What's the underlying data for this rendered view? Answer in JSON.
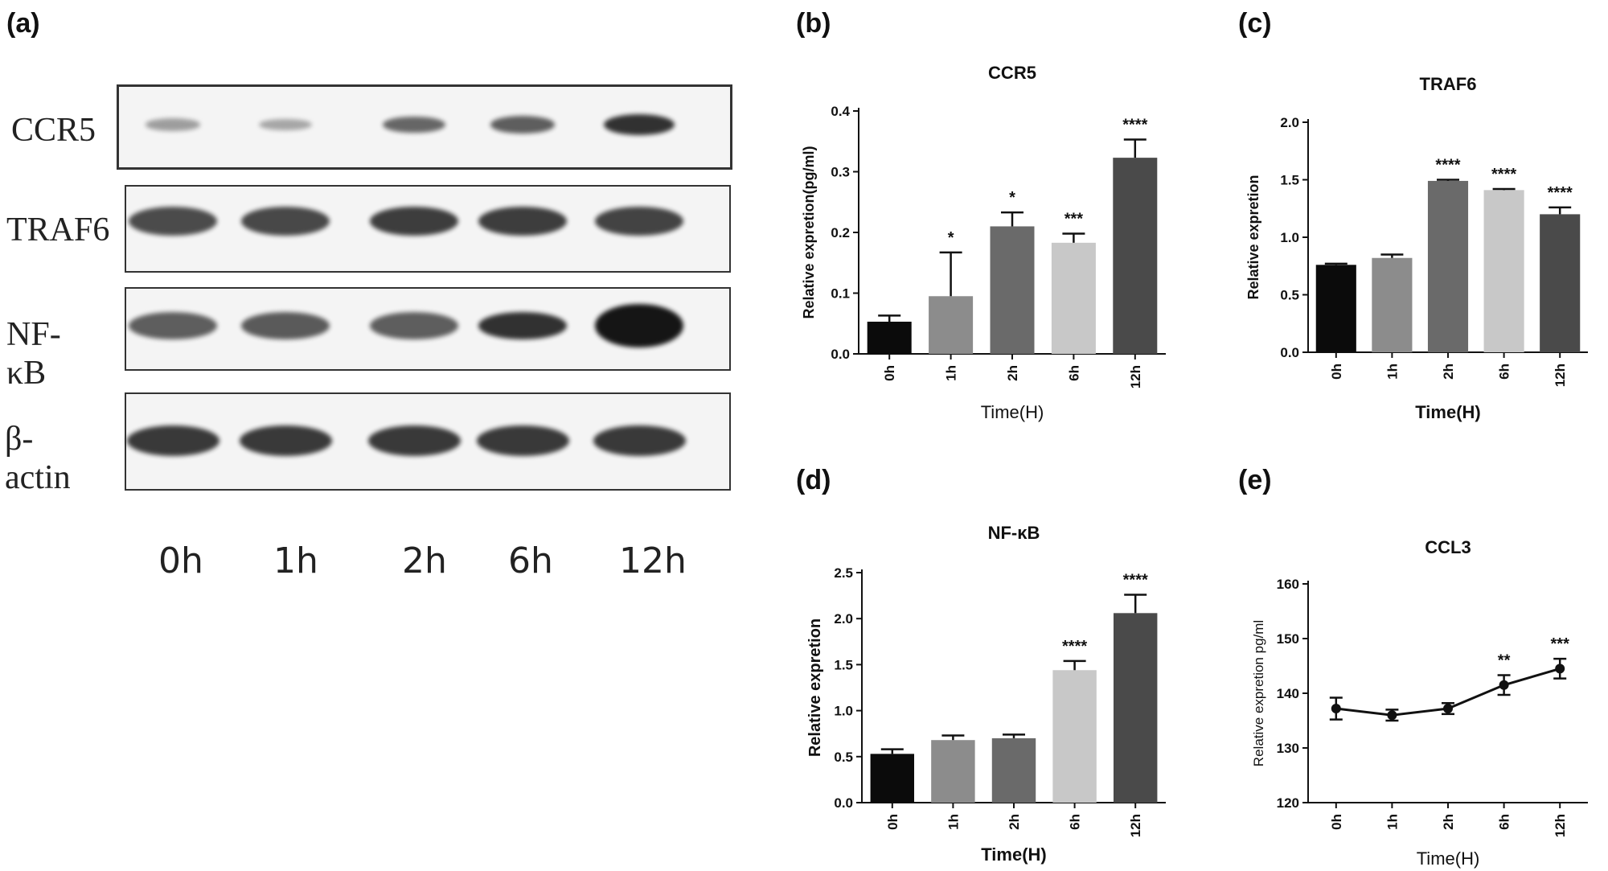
{
  "panel_letters": {
    "a": "(a)",
    "b": "(b)",
    "c": "(c)",
    "d": "(d)",
    "e": "(e)"
  },
  "blot": {
    "rows": [
      "CCR5",
      "TRAF6",
      "NF-κB",
      "β-actin"
    ],
    "lanes": [
      "0h",
      "1h",
      "2h",
      "6h",
      "12h"
    ],
    "band_intensity": {
      "CCR5": [
        0.25,
        0.2,
        0.55,
        0.6,
        0.85
      ],
      "TRAF6": [
        0.7,
        0.72,
        0.78,
        0.78,
        0.75
      ],
      "NF-κB": [
        0.6,
        0.62,
        0.6,
        0.85,
        1.0
      ],
      "β-actin": [
        0.8,
        0.8,
        0.8,
        0.8,
        0.8
      ]
    }
  },
  "chart_data": [
    {
      "id": "b",
      "type": "bar",
      "title": "CCR5",
      "xlabel": "Time(H)",
      "ylabel": "Relative expretion(pg/ml)",
      "categories": [
        "0h",
        "1h",
        "2h",
        "6h",
        "12h"
      ],
      "values": [
        0.053,
        0.095,
        0.21,
        0.183,
        0.323
      ],
      "errors": [
        0.01,
        0.072,
        0.023,
        0.015,
        0.03
      ],
      "significance": [
        "",
        "*",
        "*",
        "***",
        "****"
      ],
      "ylim": [
        0,
        0.4
      ],
      "yticks": [
        "0.0",
        "0.1",
        "0.2",
        "0.3",
        "0.4"
      ],
      "colors": [
        "#0b0b0b",
        "#8c8c8c",
        "#6a6a6a",
        "#c8c8c8",
        "#4a4a4a"
      ]
    },
    {
      "id": "c",
      "type": "bar",
      "title": "TRAF6",
      "xlabel": "Time(H)",
      "ylabel": "Relative expretion",
      "categories": [
        "0h",
        "1h",
        "2h",
        "6h",
        "12h"
      ],
      "values": [
        0.76,
        0.82,
        1.49,
        1.41,
        1.2
      ],
      "errors": [
        0.01,
        0.03,
        0.01,
        0.01,
        0.06
      ],
      "significance": [
        "",
        "",
        "****",
        "****",
        "****"
      ],
      "ylim": [
        0,
        2.0
      ],
      "yticks": [
        "0.0",
        "0.5",
        "1.0",
        "1.5",
        "2.0"
      ],
      "colors": [
        "#0b0b0b",
        "#8c8c8c",
        "#6a6a6a",
        "#c8c8c8",
        "#4a4a4a"
      ]
    },
    {
      "id": "d",
      "type": "bar",
      "title": "NF-κB",
      "xlabel": "Time(H)",
      "ylabel": "Relative expretion",
      "categories": [
        "0h",
        "1h",
        "2h",
        "6h",
        "12h"
      ],
      "values": [
        0.53,
        0.68,
        0.7,
        1.44,
        2.06
      ],
      "errors": [
        0.05,
        0.05,
        0.04,
        0.1,
        0.2
      ],
      "significance": [
        "",
        "",
        "",
        "****",
        "****"
      ],
      "ylim": [
        0,
        2.5
      ],
      "yticks": [
        "0.0",
        "0.5",
        "1.0",
        "1.5",
        "2.0",
        "2.5"
      ],
      "colors": [
        "#0b0b0b",
        "#8c8c8c",
        "#6a6a6a",
        "#c8c8c8",
        "#4a4a4a"
      ]
    },
    {
      "id": "e",
      "type": "line",
      "title": "CCL3",
      "xlabel": "Time(H)",
      "ylabel": "Relative expretion pg/ml",
      "categories": [
        "0h",
        "1h",
        "2h",
        "6h",
        "12h"
      ],
      "values": [
        137.2,
        136.0,
        137.2,
        141.5,
        144.5
      ],
      "errors": [
        2.0,
        1.0,
        1.0,
        1.8,
        1.8
      ],
      "significance": [
        "",
        "",
        "",
        "**",
        "***"
      ],
      "ylim": [
        120,
        160
      ],
      "yticks": [
        "120",
        "130",
        "140",
        "150",
        "160"
      ]
    }
  ]
}
